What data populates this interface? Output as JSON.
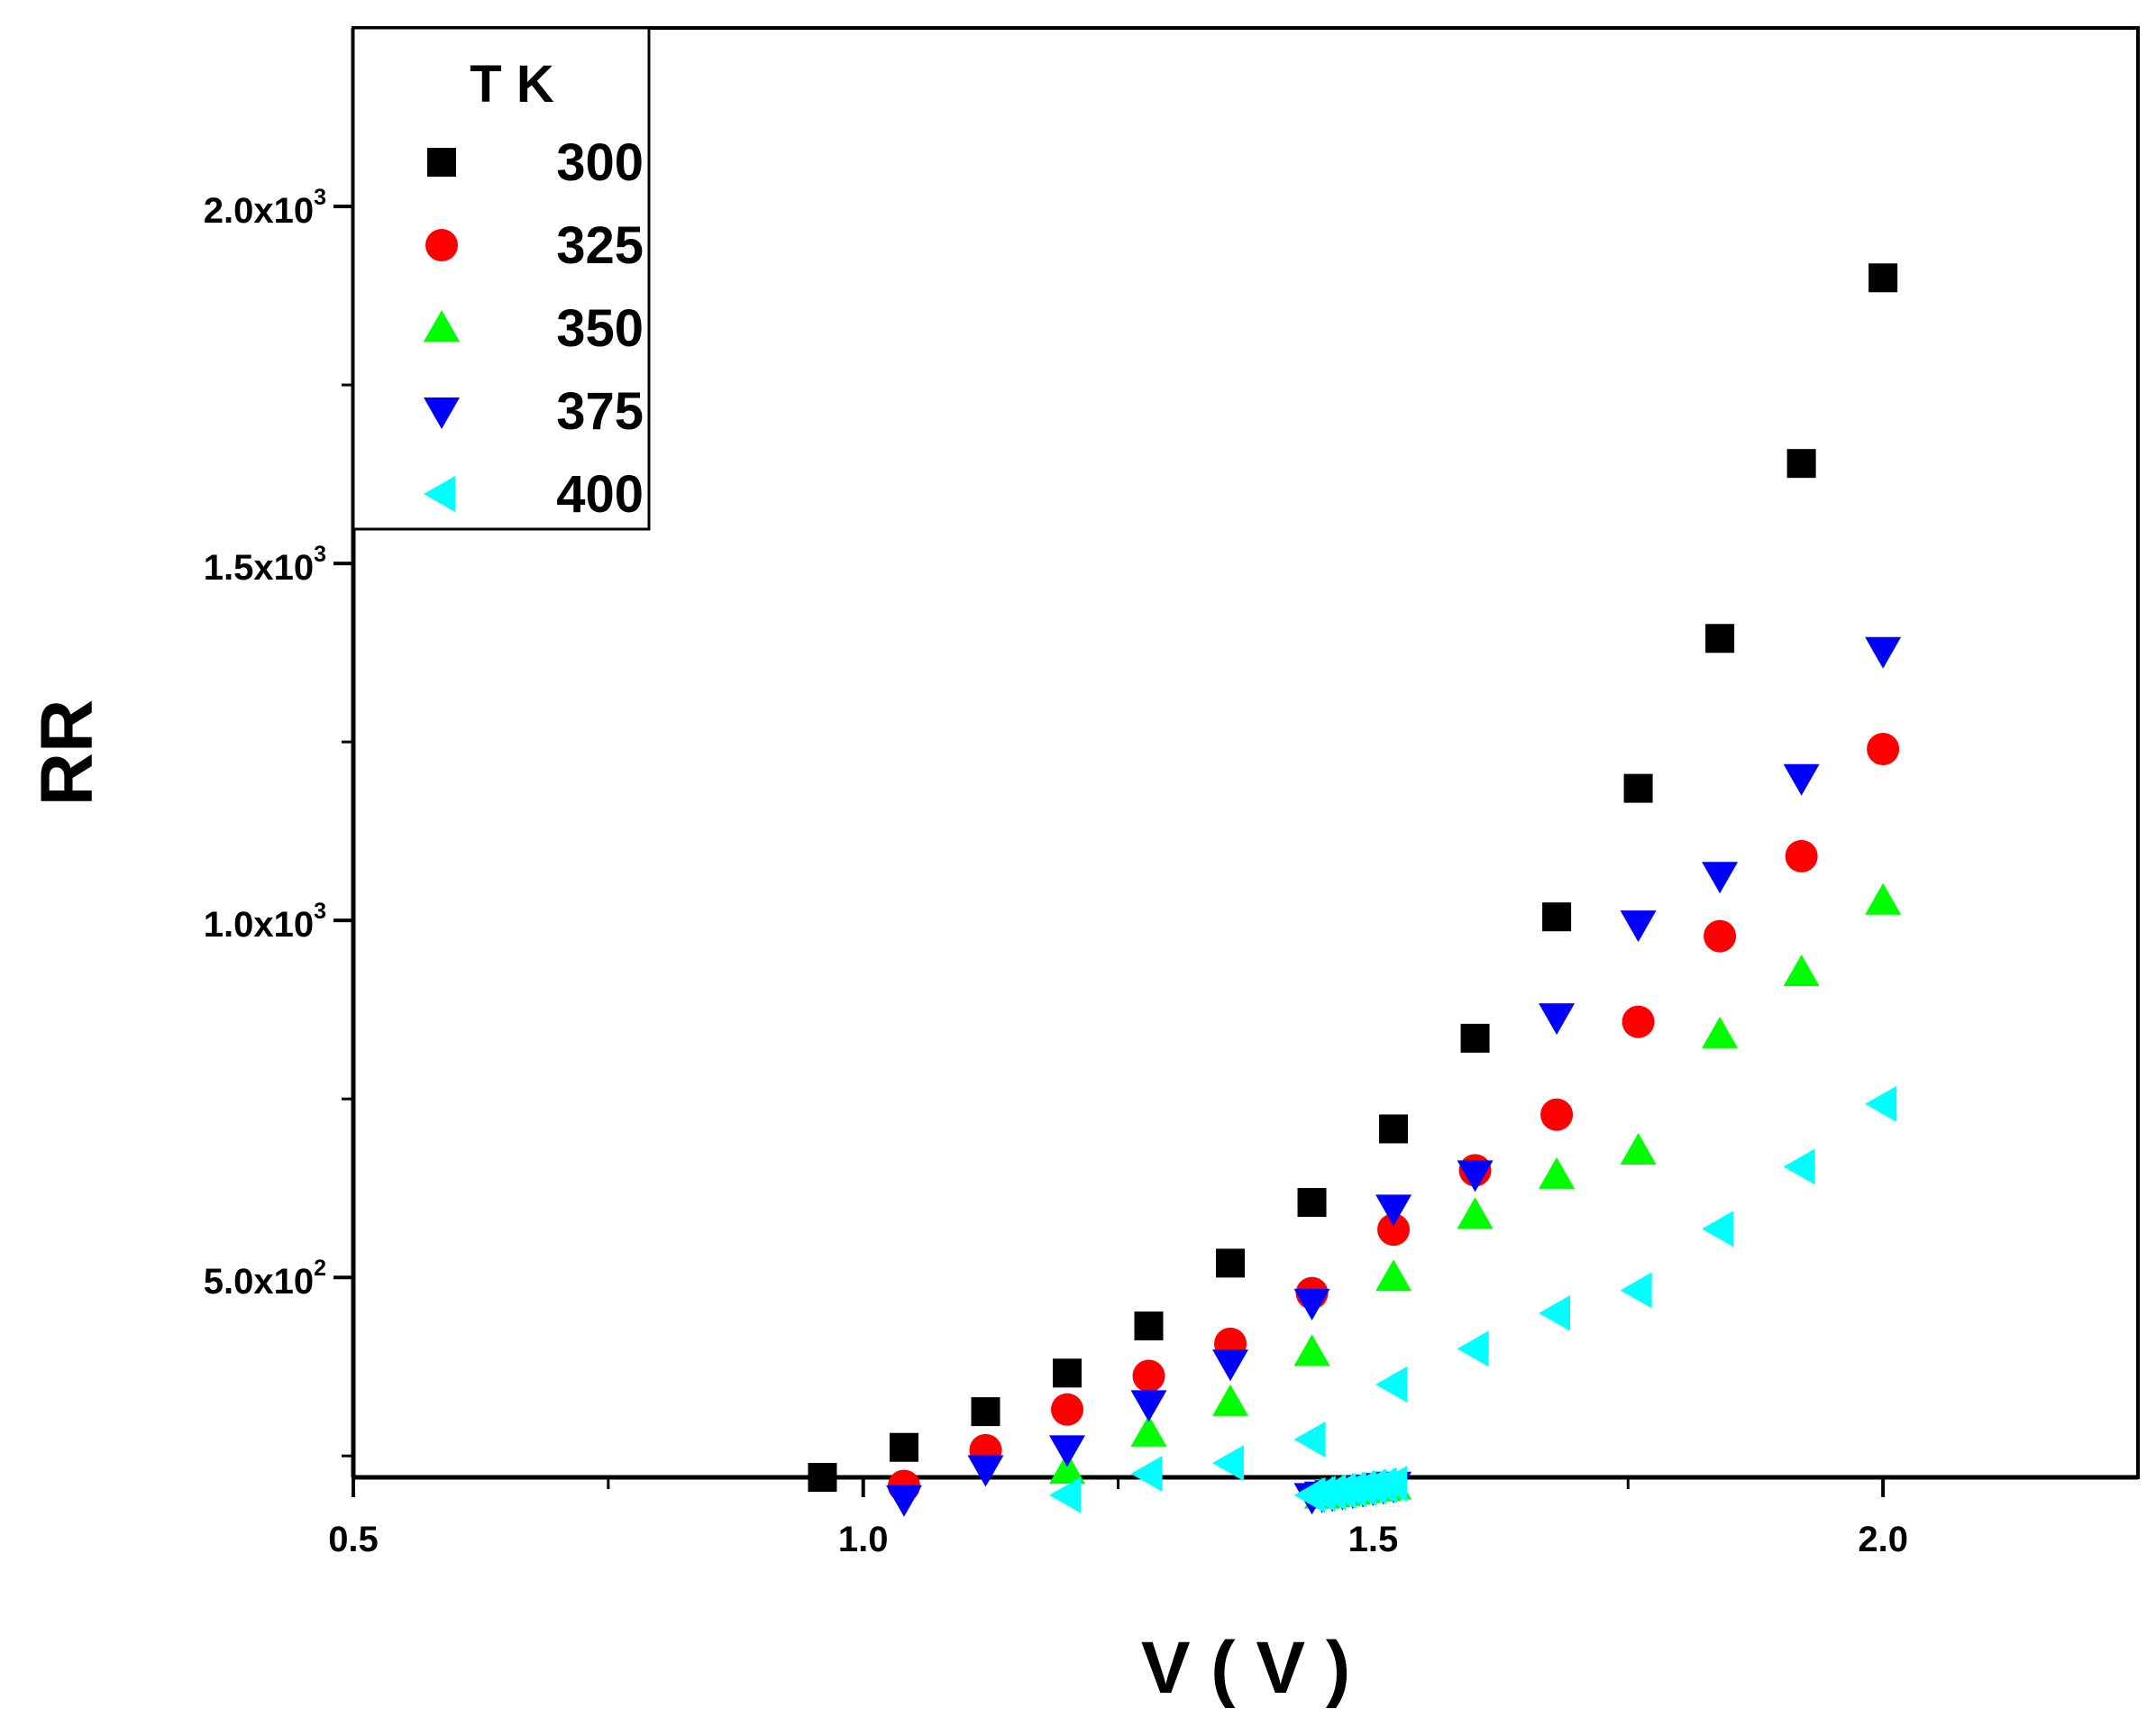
{
  "chart_data": {
    "type": "scatter",
    "title": "",
    "xlabel": "V ( V )",
    "ylabel": "RR",
    "xlim": [
      0.5,
      2.25
    ],
    "ylim": [
      220,
      2250
    ],
    "x_ticks": [
      {
        "value": 0.5,
        "label": "0.5"
      },
      {
        "value": 1.0,
        "label": "1.0"
      },
      {
        "value": 1.5,
        "label": "1.5"
      },
      {
        "value": 2.0,
        "label": "2.0"
      }
    ],
    "y_ticks": [
      {
        "value": 500,
        "mant": "5.0x10",
        "exp": "2"
      },
      {
        "value": 1000,
        "mant": "1.0x10",
        "exp": "3"
      },
      {
        "value": 1500,
        "mant": "1.5x10",
        "exp": "3"
      },
      {
        "value": 2000,
        "mant": "2.0x10",
        "exp": "3"
      }
    ],
    "legend": {
      "title": "T K",
      "placement": "top-left"
    },
    "series": [
      {
        "name": "300",
        "marker": "square",
        "color": "#000000",
        "x": [
          0.96,
          1.04,
          1.12,
          1.2,
          1.28,
          1.36,
          1.44,
          1.52,
          1.6,
          1.68,
          1.76,
          1.84,
          1.92,
          2.0
        ],
        "y": [
          220,
          262,
          312,
          366,
          432,
          520,
          605,
          708,
          835,
          1005,
          1185,
          1395,
          1640,
          1900
        ]
      },
      {
        "name": "325",
        "marker": "circle",
        "color": "#ff0000",
        "x": [
          1.04,
          1.12,
          1.2,
          1.28,
          1.36,
          1.44,
          1.52,
          1.6,
          1.68,
          1.76,
          1.84,
          1.92,
          2.0
        ],
        "y": [
          208,
          258,
          315,
          362,
          407,
          478,
          567,
          650,
          728,
          858,
          978,
          1090,
          1240
        ]
      },
      {
        "name": "350",
        "marker": "triangle-up",
        "color": "#00ff00",
        "x": [
          1.2,
          1.28,
          1.36,
          1.44,
          1.45,
          1.46,
          1.47,
          1.48,
          1.49,
          1.5,
          1.51,
          1.52,
          1.52,
          1.6,
          1.68,
          1.76,
          1.84,
          1.92,
          2.0
        ],
        "y": [
          230,
          282,
          325,
          395,
          195,
          197,
          199,
          201,
          203,
          205,
          206,
          208,
          500,
          587,
          643,
          677,
          840,
          927,
          1027
        ]
      },
      {
        "name": "375",
        "marker": "triangle-down",
        "color": "#0000ff",
        "x": [
          1.04,
          1.12,
          1.2,
          1.28,
          1.36,
          1.44,
          1.44,
          1.45,
          1.46,
          1.47,
          1.48,
          1.49,
          1.5,
          1.51,
          1.52,
          1.52,
          1.6,
          1.68,
          1.76,
          1.84,
          1.92,
          2.0
        ],
        "y": [
          190,
          232,
          260,
          323,
          380,
          193,
          465,
          195,
          197,
          199,
          201,
          203,
          205,
          207,
          209,
          597,
          645,
          865,
          995,
          1063,
          1200,
          1378
        ]
      },
      {
        "name": "400",
        "marker": "triangle-left",
        "color": "#00ffff",
        "x": [
          1.2,
          1.28,
          1.36,
          1.44,
          1.44,
          1.45,
          1.46,
          1.47,
          1.48,
          1.49,
          1.5,
          1.51,
          1.52,
          1.52,
          1.6,
          1.68,
          1.76,
          1.84,
          1.92,
          2.0
        ],
        "y": [
          195,
          225,
          240,
          195,
          273,
          197,
          199,
          201,
          203,
          205,
          207,
          209,
          211,
          350,
          400,
          450,
          482,
          568,
          655,
          743
        ]
      }
    ]
  }
}
